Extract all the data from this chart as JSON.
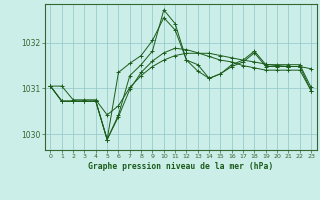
{
  "title": "Graphe pression niveau de la mer (hPa)",
  "background_color": "#cceee8",
  "grid_color": "#99cccc",
  "line_color": "#1a5c1a",
  "axes_color": "#336633",
  "xlim": [
    -0.5,
    23.5
  ],
  "ylim": [
    1029.65,
    1032.85
  ],
  "yticks": [
    1030,
    1031,
    1032
  ],
  "xticks": [
    0,
    1,
    2,
    3,
    4,
    5,
    6,
    7,
    8,
    9,
    10,
    11,
    12,
    13,
    14,
    15,
    16,
    17,
    18,
    19,
    20,
    21,
    22,
    23
  ],
  "series": [
    [
      1031.05,
      1031.05,
      1030.75,
      1030.75,
      1030.75,
      1030.42,
      1030.62,
      1031.02,
      1031.28,
      1031.48,
      1031.62,
      1031.72,
      1031.77,
      1031.77,
      1031.77,
      1031.72,
      1031.67,
      1031.62,
      1031.58,
      1031.53,
      1031.5,
      1031.48,
      1031.48,
      1031.43
    ],
    [
      1031.05,
      1030.72,
      1030.72,
      1030.72,
      1030.72,
      1029.88,
      1030.38,
      1030.98,
      1031.35,
      1031.6,
      1031.78,
      1031.88,
      1031.85,
      1031.78,
      1031.7,
      1031.62,
      1031.58,
      1031.5,
      1031.45,
      1031.4,
      1031.4,
      1031.4,
      1031.4,
      1030.95
    ],
    [
      1031.05,
      1030.72,
      1030.72,
      1030.72,
      1030.72,
      1029.88,
      1031.35,
      1031.55,
      1031.72,
      1032.05,
      1032.55,
      1032.28,
      1031.62,
      1031.38,
      1031.22,
      1031.32,
      1031.48,
      1031.58,
      1031.78,
      1031.48,
      1031.48,
      1031.48,
      1031.48,
      1030.95
    ],
    [
      1031.05,
      1030.72,
      1030.72,
      1030.72,
      1030.72,
      1029.88,
      1030.42,
      1031.28,
      1031.52,
      1031.82,
      1032.72,
      1032.42,
      1031.62,
      1031.52,
      1031.22,
      1031.32,
      1031.52,
      1031.62,
      1031.82,
      1031.52,
      1031.52,
      1031.52,
      1031.52,
      1031.02
    ]
  ]
}
